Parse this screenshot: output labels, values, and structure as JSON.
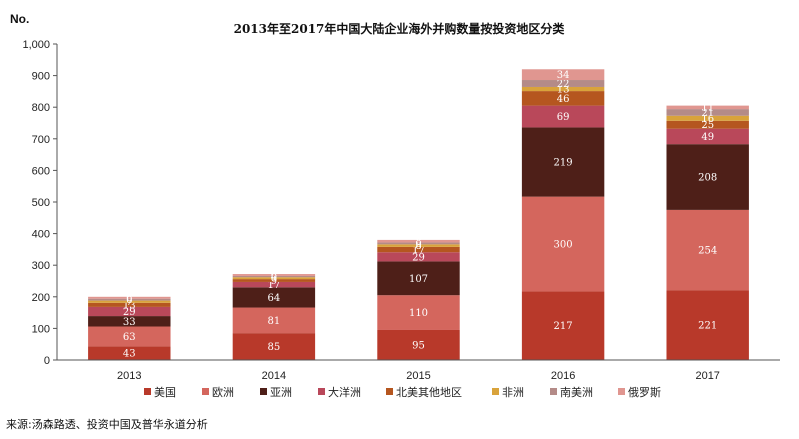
{
  "chart_data": {
    "type": "bar",
    "stacked": true,
    "title": "2013年至2017年中国大陆企业海外并购数量按投资地区分类",
    "ylabel": "No.",
    "xlabel": "",
    "ylim": [
      0,
      1000
    ],
    "yticks": [
      0,
      100,
      200,
      300,
      400,
      500,
      600,
      700,
      800,
      900,
      1000
    ],
    "ytick_labels": [
      "0",
      "100",
      "200",
      "300",
      "400",
      "500",
      "600",
      "700",
      "800",
      "900",
      "1,000"
    ],
    "categories": [
      "2013",
      "2014",
      "2015",
      "2016",
      "2017"
    ],
    "series": [
      {
        "name": "美国",
        "color": "#b8392a",
        "values": [
          43,
          85,
          95,
          217,
          221
        ]
      },
      {
        "name": "欧洲",
        "color": "#d4665d",
        "values": [
          63,
          81,
          110,
          300,
          254
        ]
      },
      {
        "name": "亚洲",
        "color": "#4e1f18",
        "values": [
          33,
          64,
          107,
          219,
          208
        ]
      },
      {
        "name": "大洋洲",
        "color": "#b9485a",
        "values": [
          29,
          17,
          29,
          69,
          49
        ]
      },
      {
        "name": "北美其他地区",
        "color": "#b5561f",
        "values": [
          13,
          9,
          17,
          46,
          25
        ]
      },
      {
        "name": "非洲",
        "color": "#d9a33b",
        "values": [
          7,
          6,
          8,
          13,
          16
        ]
      },
      {
        "name": "南美洲",
        "color": "#b48b88",
        "values": [
          6,
          4,
          6,
          22,
          21
        ]
      },
      {
        "name": "俄罗斯",
        "color": "#e09690",
        "values": [
          6,
          6,
          8,
          34,
          11
        ]
      }
    ],
    "legend_position": "bottom",
    "grid": false
  },
  "source": "来源:汤森路透、投资中国及普华永道分析"
}
